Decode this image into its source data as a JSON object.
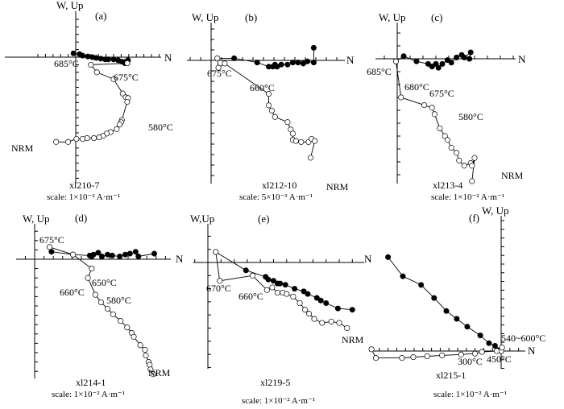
{
  "chart_data": [
    {
      "type": "scatter",
      "subtype": "orthogonal-vector-plot",
      "panel_label": "(a)",
      "specimen": "xl210-7",
      "scale_text": "scale: 1×10⁻² A·m⁻¹",
      "vertical_axis_label": "W, Up",
      "horizontal_axis_label": "N",
      "horizontal_projection_solid": [
        [
          -0.3,
          -0.5
        ],
        [
          0.5,
          -0.4
        ],
        [
          0.9,
          -0.2
        ],
        [
          1.6,
          -0.1
        ],
        [
          2.2,
          0.0
        ],
        [
          2.7,
          0.1
        ],
        [
          3.3,
          0.2
        ],
        [
          3.9,
          0.3
        ],
        [
          4.3,
          0.3
        ],
        [
          5.0,
          0.3
        ],
        [
          5.6,
          0.4
        ],
        [
          6.1,
          0.6
        ],
        [
          6.5,
          0.8
        ],
        [
          6.6,
          0.6
        ],
        [
          6.9,
          0.4
        ],
        [
          6.8,
          0.8
        ]
      ],
      "vertical_projection_open": [
        [
          6.8,
          0.8
        ],
        [
          2.0,
          1.0
        ],
        [
          2.8,
          2.0
        ],
        [
          5.0,
          2.9
        ],
        [
          6.2,
          4.8
        ],
        [
          6.6,
          5.3
        ],
        [
          6.9,
          5.4
        ],
        [
          6.8,
          5.9
        ],
        [
          6.1,
          8.3
        ],
        [
          6.0,
          8.6
        ],
        [
          5.8,
          8.9
        ],
        [
          5.4,
          9.5
        ],
        [
          4.6,
          9.9
        ],
        [
          4.1,
          10.1
        ],
        [
          3.6,
          10.4
        ],
        [
          3.1,
          10.6
        ],
        [
          2.4,
          10.7
        ],
        [
          1.5,
          10.7
        ],
        [
          0.9,
          10.8
        ],
        [
          0.1,
          10.8
        ],
        [
          -1.0,
          11.2
        ],
        [
          -2.6,
          11.2
        ]
      ],
      "temperature_labels": [
        {
          "text": "685°C",
          "at": [
            1.6,
            -0.1
          ]
        },
        {
          "text": "675°C",
          "at": [
            2.8,
            2.0
          ]
        },
        {
          "text": "580°C",
          "at": [
            6.1,
            8.3
          ]
        },
        {
          "text": "NRM",
          "at": [
            -2.6,
            11.2
          ]
        }
      ],
      "xlim": [
        -3,
        8
      ],
      "ylim": [
        -3,
        15
      ]
    },
    {
      "type": "scatter",
      "subtype": "orthogonal-vector-plot",
      "panel_label": "(b)",
      "specimen": "xl212-10",
      "scale_text": "scale: 5×10⁻³ A·m⁻¹",
      "vertical_axis_label": "W, Up",
      "horizontal_axis_label": "N",
      "horizontal_projection_solid": [
        [
          0.6,
          -0.2
        ],
        [
          2.2,
          -0.2
        ],
        [
          4.4,
          0.2
        ],
        [
          5.5,
          0.6
        ],
        [
          5.9,
          0.6
        ],
        [
          6.1,
          0.4
        ],
        [
          6.3,
          0.6
        ],
        [
          6.7,
          0.4
        ],
        [
          7.3,
          0.4
        ],
        [
          7.8,
          0.2
        ],
        [
          8.3,
          0.2
        ],
        [
          8.8,
          0.3
        ],
        [
          9.2,
          0.1
        ],
        [
          9.8,
          0.2
        ],
        [
          9.8,
          -1.2
        ]
      ],
      "vertical_projection_open": [
        [
          0.6,
          -0.2
        ],
        [
          0.7,
          0.7
        ],
        [
          1.3,
          0.3
        ],
        [
          5.5,
          3.2
        ],
        [
          5.5,
          4.3
        ],
        [
          5.8,
          4.8
        ],
        [
          6.1,
          5.4
        ],
        [
          7.3,
          5.9
        ],
        [
          7.6,
          6.6
        ],
        [
          7.8,
          7.0
        ],
        [
          7.8,
          7.6
        ],
        [
          8.1,
          7.7
        ],
        [
          8.6,
          7.8
        ],
        [
          9.3,
          7.8
        ],
        [
          9.6,
          7.5
        ],
        [
          9.9,
          7.7
        ],
        [
          9.5,
          9.3
        ]
      ],
      "temperature_labels": [
        {
          "text": "675°C",
          "at": [
            0.7,
            0.7
          ]
        },
        {
          "text": "660°C",
          "at": [
            5.5,
            3.2
          ]
        },
        {
          "text": "NRM",
          "at": [
            9.5,
            9.3
          ]
        }
      ],
      "xlim": [
        -1,
        11
      ],
      "ylim": [
        -3,
        12
      ]
    },
    {
      "type": "scatter",
      "subtype": "orthogonal-vector-plot",
      "panel_label": "(c)",
      "specimen": "xl213-4",
      "scale_text": "scale: 1×10⁻² A·m⁻¹",
      "vertical_axis_label": "W, Up",
      "horizontal_axis_label": "N",
      "horizontal_projection_solid": [
        [
          -0.1,
          0.2
        ],
        [
          0.5,
          -0.2
        ],
        [
          1.5,
          0.2
        ],
        [
          2.4,
          0.4
        ],
        [
          2.7,
          0.6
        ],
        [
          3.0,
          0.4
        ],
        [
          3.2,
          0.7
        ],
        [
          3.5,
          0.4
        ],
        [
          3.9,
          0.1
        ],
        [
          4.2,
          0.3
        ],
        [
          4.6,
          -0.1
        ],
        [
          5.0,
          -0.3
        ],
        [
          5.2,
          -0.1
        ],
        [
          5.7,
          -0.5
        ],
        [
          5.6,
          0.0
        ]
      ],
      "vertical_projection_open": [
        [
          -0.1,
          0.2
        ],
        [
          0.3,
          3.0
        ],
        [
          2.1,
          3.6
        ],
        [
          2.7,
          3.8
        ],
        [
          2.9,
          4.3
        ],
        [
          3.3,
          5.4
        ],
        [
          3.7,
          6.0
        ],
        [
          3.9,
          6.3
        ],
        [
          4.2,
          6.9
        ],
        [
          4.6,
          7.3
        ],
        [
          4.8,
          7.9
        ],
        [
          5.2,
          8.3
        ],
        [
          5.7,
          8.1
        ],
        [
          5.8,
          8.3
        ],
        [
          6.0,
          7.7
        ],
        [
          5.8,
          9.5
        ]
      ],
      "temperature_labels": [
        {
          "text": "685°C",
          "at": [
            -0.1,
            0.2
          ]
        },
        {
          "text": "680°C",
          "at": [
            0.3,
            3.0
          ]
        },
        {
          "text": "675°C",
          "at": [
            2.1,
            3.6
          ]
        },
        {
          "text": "580°C",
          "at": [
            3.3,
            5.4
          ]
        },
        {
          "text": "NRM",
          "at": [
            5.8,
            9.5
          ]
        }
      ],
      "xlim": [
        -1,
        8
      ],
      "ylim": [
        -3,
        12
      ]
    },
    {
      "type": "scatter",
      "subtype": "orthogonal-vector-plot",
      "panel_label": "(d)",
      "specimen": "xl214-1",
      "scale_text": "scale: 1×10⁻² A·m⁻¹",
      "vertical_axis_label": "W, Up",
      "horizontal_axis_label": "N",
      "horizontal_projection_solid": [
        [
          1.6,
          -1.3
        ],
        [
          1.8,
          -0.8
        ],
        [
          4.1,
          -0.5
        ],
        [
          5.9,
          -0.4
        ],
        [
          6.1,
          -0.3
        ],
        [
          6.3,
          -0.5
        ],
        [
          6.8,
          -0.7
        ],
        [
          7.2,
          -0.3
        ],
        [
          7.8,
          -0.5
        ],
        [
          8.3,
          -0.4
        ],
        [
          9.1,
          -0.3
        ],
        [
          9.7,
          -0.5
        ],
        [
          10.2,
          -0.6
        ],
        [
          10.8,
          -0.8
        ],
        [
          11.1,
          -0.3
        ],
        [
          12.8,
          -0.6
        ]
      ],
      "vertical_projection_open": [
        [
          1.6,
          -1.3
        ],
        [
          4.1,
          -0.5
        ],
        [
          6.1,
          1.0
        ],
        [
          5.7,
          2.0
        ],
        [
          6.5,
          3.8
        ],
        [
          7.1,
          4.6
        ],
        [
          7.8,
          5.3
        ],
        [
          8.4,
          5.9
        ],
        [
          9.2,
          6.6
        ],
        [
          9.9,
          7.3
        ],
        [
          10.4,
          7.9
        ],
        [
          10.6,
          8.3
        ],
        [
          11.3,
          9.2
        ],
        [
          11.8,
          9.7
        ],
        [
          11.9,
          10.3
        ],
        [
          12.2,
          11.0
        ],
        [
          12.3,
          11.3
        ],
        [
          12.4,
          11.8
        ],
        [
          12.7,
          12.3
        ]
      ],
      "temperature_labels": [
        {
          "text": "675°C",
          "at": [
            1.6,
            -1.3
          ]
        },
        {
          "text": "650°C",
          "at": [
            6.1,
            1.0
          ]
        },
        {
          "text": "660°C",
          "at": [
            5.7,
            2.0
          ]
        },
        {
          "text": "580°C",
          "at": [
            7.1,
            4.6
          ]
        },
        {
          "text": "NRM",
          "at": [
            12.7,
            12.3
          ]
        }
      ],
      "xlim": [
        -2,
        16
      ],
      "ylim": [
        -3,
        14
      ]
    },
    {
      "type": "scatter",
      "subtype": "orthogonal-vector-plot",
      "panel_label": "(e)",
      "specimen": "xl219-5",
      "scale_text": "scale: 1×10⁻² A·m⁻¹",
      "vertical_axis_label": "W,Up",
      "horizontal_axis_label": "N",
      "horizontal_projection_solid": [
        [
          0.6,
          -0.8
        ],
        [
          2.9,
          0.6
        ],
        [
          4.4,
          1.1
        ],
        [
          4.6,
          1.3
        ],
        [
          5.0,
          1.4
        ],
        [
          5.3,
          1.6
        ],
        [
          5.5,
          1.6
        ],
        [
          5.9,
          1.7
        ],
        [
          6.6,
          2.0
        ],
        [
          7.3,
          2.2
        ],
        [
          7.6,
          2.4
        ],
        [
          8.3,
          2.7
        ],
        [
          8.6,
          2.9
        ],
        [
          9.0,
          3.1
        ],
        [
          9.9,
          3.5
        ],
        [
          11.0,
          3.6
        ]
      ],
      "vertical_projection_open": [
        [
          0.6,
          -0.8
        ],
        [
          0.9,
          1.4
        ],
        [
          3.4,
          1.0
        ],
        [
          4.5,
          2.1
        ],
        [
          4.9,
          1.9
        ],
        [
          5.3,
          2.3
        ],
        [
          5.7,
          2.3
        ],
        [
          6.0,
          2.4
        ],
        [
          6.5,
          2.6
        ],
        [
          7.0,
          3.1
        ],
        [
          7.4,
          3.6
        ],
        [
          7.7,
          3.9
        ],
        [
          8.1,
          4.3
        ],
        [
          8.7,
          4.6
        ],
        [
          9.4,
          4.5
        ],
        [
          10.0,
          4.6
        ],
        [
          10.6,
          5.0
        ]
      ],
      "temperature_labels": [
        {
          "text": "670°C",
          "at": [
            0.9,
            1.4
          ]
        },
        {
          "text": "660°C",
          "at": [
            3.4,
            1.0
          ]
        },
        {
          "text": "NRM",
          "at": [
            10.6,
            5.0
          ]
        }
      ],
      "xlim": [
        -1,
        12
      ],
      "ylim": [
        -3,
        7
      ]
    },
    {
      "type": "scatter",
      "subtype": "orthogonal-vector-plot",
      "panel_label": "(f)",
      "specimen": "xl215-1",
      "scale_text": "scale: 1×10⁻² A·m⁻¹",
      "vertical_axis_label": "W, Up",
      "horizontal_axis_label": "N",
      "horizontal_projection_solid": [
        [
          -13.0,
          -10.8
        ],
        [
          -11.3,
          -8.6
        ],
        [
          -9.2,
          -7.6
        ],
        [
          -7.7,
          -6.1
        ],
        [
          -6.3,
          -4.6
        ],
        [
          -5.1,
          -3.7
        ],
        [
          -3.9,
          -2.8
        ],
        [
          -2.4,
          -1.8
        ],
        [
          -1.4,
          -0.9
        ],
        [
          -0.7,
          -0.6
        ],
        [
          -0.4,
          -0.1
        ],
        [
          -0.1,
          -0.1
        ],
        [
          0.0,
          0.0
        ]
      ],
      "vertical_projection_open": [
        [
          0.0,
          0.0
        ],
        [
          0.1,
          -0.4
        ],
        [
          -0.5,
          0.0
        ],
        [
          -2.2,
          0.1
        ],
        [
          -3.0,
          0.3
        ],
        [
          -4.6,
          0.4
        ],
        [
          -6.8,
          0.5
        ],
        [
          -8.5,
          0.6
        ],
        [
          -10.1,
          0.7
        ],
        [
          -11.4,
          0.8
        ],
        [
          -14.4,
          0.8
        ],
        [
          -14.9,
          -0.2
        ]
      ],
      "temperature_labels": [
        {
          "text": "540~600°C",
          "at": [
            0.1,
            -0.4
          ]
        },
        {
          "text": "450°C",
          "at": [
            0.0,
            0.0
          ]
        },
        {
          "text": "300°C",
          "at": [
            -3.0,
            0.3
          ]
        }
      ],
      "xlim": [
        -16,
        2
      ],
      "ylim": [
        -13,
        3
      ]
    }
  ]
}
